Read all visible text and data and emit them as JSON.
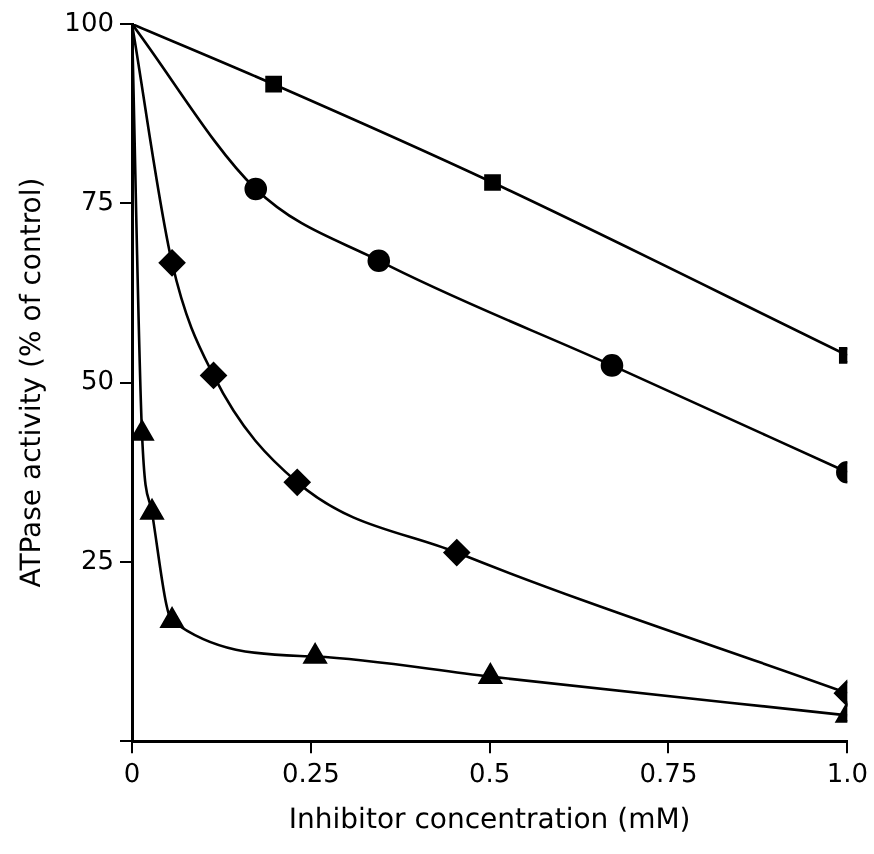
{
  "chart_data": {
    "type": "line",
    "xlabel": "Inhibitor concentration (mM)",
    "ylabel": "ATPase activity (% of control)",
    "xlim": [
      0,
      1
    ],
    "ylim": [
      0,
      100
    ],
    "xticks": [
      0,
      0.25,
      0.5,
      0.75,
      {
        "value": 1,
        "label": "1.0"
      }
    ],
    "yticks": [
      {
        "value": 0,
        "label": null
      },
      25,
      50,
      75,
      100
    ],
    "grid": false,
    "legend": false,
    "line_style": "solid",
    "series": [
      {
        "color": "#000000",
        "marker": "square",
        "x": [
          0,
          0.198,
          0.504,
          1.0
        ],
        "values": [
          100,
          91.6,
          77.9,
          53.8
        ]
      },
      {
        "color": "#000000",
        "marker": "circle",
        "x": [
          0,
          0.173,
          0.345,
          0.671,
          1.0
        ],
        "values": [
          100,
          77,
          67,
          52.4,
          37.5
        ]
      },
      {
        "color": "#000000",
        "marker": "diamond",
        "x": [
          0,
          0.056,
          0.114,
          0.231,
          0.454,
          1.0
        ],
        "values": [
          100,
          66.7,
          51,
          36.1,
          26.3,
          6.7
        ]
      },
      {
        "color": "#000000",
        "marker": "triangle",
        "x": [
          0,
          0.014,
          0.028,
          0.056,
          0.256,
          0.501,
          1.0
        ],
        "values": [
          100,
          42.9,
          31.9,
          16.8,
          11.8,
          9,
          3.6
        ]
      }
    ]
  }
}
